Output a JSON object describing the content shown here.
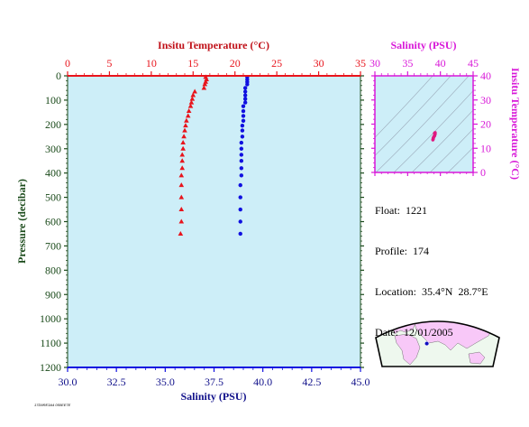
{
  "colors": {
    "temperature": "#e8141c",
    "salinity": "#1010e0",
    "pressure_axis": "#1a4a1a",
    "inset": "#d818d8",
    "plot_bg": "#cdeef8",
    "map_land": "#f8c8f8",
    "map_sea": "#eef8ee"
  },
  "info": {
    "float": "Float:  1221",
    "profile": "Profile:  174",
    "location": "Location:  35.4°N  28.7°E",
    "date": "Date:  12/01/2005"
  },
  "footer_code": "17D9RE3A4 050EE7E",
  "icons": [
    "location-marker-icon"
  ],
  "chart_data": [
    {
      "type": "scatter",
      "title": "",
      "x_top_label": "Insitu Temperature (°C)",
      "x_bottom_label": "Salinity (PSU)",
      "ylabel": "Pressure (decibar)",
      "y_inverted": true,
      "ylim": [
        0,
        1200
      ],
      "y_ticks": [
        0,
        100,
        200,
        300,
        400,
        500,
        600,
        700,
        800,
        900,
        1000,
        1100,
        1200
      ],
      "x_top_lim": [
        0,
        35
      ],
      "x_top_ticks": [
        0,
        5,
        10,
        15,
        20,
        25,
        30,
        35
      ],
      "x_bottom_lim": [
        30,
        45
      ],
      "x_bottom_ticks": [
        "30.0",
        "32.5",
        "35.0",
        "37.5",
        "40.0",
        "42.5",
        "45.0"
      ],
      "series": [
        {
          "axis": "top",
          "marker": "triangle",
          "points": [
            [
              16.5,
              5
            ],
            [
              16.6,
              15
            ],
            [
              16.5,
              25
            ],
            [
              16.4,
              35
            ],
            [
              16.3,
              50
            ],
            [
              15.2,
              65
            ],
            [
              15.0,
              80
            ],
            [
              14.9,
              95
            ],
            [
              14.8,
              110
            ],
            [
              14.7,
              125
            ],
            [
              14.5,
              145
            ],
            [
              14.4,
              165
            ],
            [
              14.2,
              185
            ],
            [
              14.1,
              205
            ],
            [
              14.0,
              225
            ],
            [
              13.9,
              250
            ],
            [
              13.8,
              275
            ],
            [
              13.8,
              300
            ],
            [
              13.7,
              325
            ],
            [
              13.7,
              350
            ],
            [
              13.7,
              380
            ],
            [
              13.6,
              410
            ],
            [
              13.6,
              450
            ],
            [
              13.6,
              500
            ],
            [
              13.6,
              550
            ],
            [
              13.6,
              600
            ],
            [
              13.5,
              650
            ]
          ]
        },
        {
          "axis": "bottom",
          "marker": "dot",
          "points": [
            [
              39.2,
              5
            ],
            [
              39.2,
              15
            ],
            [
              39.2,
              25
            ],
            [
              39.2,
              35
            ],
            [
              39.1,
              50
            ],
            [
              39.1,
              65
            ],
            [
              39.1,
              80
            ],
            [
              39.1,
              95
            ],
            [
              39.1,
              110
            ],
            [
              39.0,
              125
            ],
            [
              39.0,
              145
            ],
            [
              39.0,
              165
            ],
            [
              39.0,
              185
            ],
            [
              38.95,
              205
            ],
            [
              38.95,
              225
            ],
            [
              38.95,
              250
            ],
            [
              38.9,
              275
            ],
            [
              38.9,
              300
            ],
            [
              38.9,
              325
            ],
            [
              38.9,
              350
            ],
            [
              38.9,
              380
            ],
            [
              38.9,
              410
            ],
            [
              38.85,
              450
            ],
            [
              38.85,
              500
            ],
            [
              38.85,
              550
            ],
            [
              38.85,
              600
            ],
            [
              38.85,
              650
            ]
          ]
        }
      ]
    },
    {
      "type": "scatter",
      "title": "",
      "x_label": "Salinity (PSU)",
      "y_label": "Insitu Temperature (°C)",
      "xlim": [
        30,
        45
      ],
      "x_ticks": [
        30,
        35,
        40,
        45
      ],
      "ylim": [
        0,
        40
      ],
      "y_ticks": [
        0,
        10,
        20,
        30,
        40
      ],
      "density_contours": true,
      "points": [
        [
          38.85,
          13.5
        ],
        [
          38.9,
          13.8
        ],
        [
          38.9,
          14.1
        ],
        [
          38.95,
          14.4
        ],
        [
          39.0,
          14.8
        ],
        [
          39.1,
          15.1
        ],
        [
          39.15,
          15.5
        ],
        [
          39.2,
          16.0
        ],
        [
          39.2,
          16.5
        ],
        [
          39.1,
          16.2
        ]
      ]
    }
  ],
  "map": {
    "marker": [
      35.4,
      28.7
    ]
  }
}
